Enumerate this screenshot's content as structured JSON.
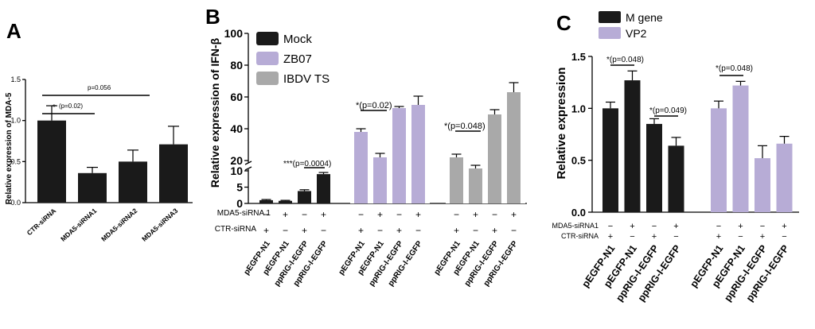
{
  "panels": {
    "A": {
      "letter": "A"
    },
    "B": {
      "letter": "B"
    },
    "C": {
      "letter": "C"
    }
  },
  "chart_data": [
    {
      "panel": "A",
      "type": "bar",
      "title": "",
      "ylabel": "Relative expression of MDA-5",
      "xlabel": "",
      "ylim": [
        0,
        1.5
      ],
      "yticks": [
        "0.0",
        "0.5",
        "1.0",
        "1.5"
      ],
      "categories": [
        "CTR-siRNA",
        "MDA5-siRNA1",
        "MDA5-siRNA2",
        "MDA5-siRNA3"
      ],
      "values": [
        1.0,
        0.36,
        0.5,
        0.71
      ],
      "errors": [
        0.18,
        0.07,
        0.14,
        0.22
      ],
      "color": "#1a1a1a",
      "annotations": [
        "p=0.056",
        "*",
        "(p=0.02)"
      ]
    },
    {
      "panel": "B",
      "type": "bar",
      "title": "",
      "ylabel": "Relative expression of IFN-β",
      "broken_axis": {
        "lower_ylim": [
          0,
          10
        ],
        "upper_ylim": [
          20,
          100
        ]
      },
      "yticks": [
        "0",
        "5",
        "10",
        "20",
        "40",
        "60",
        "80",
        "100"
      ],
      "legend": [
        "Mock",
        "ZB07",
        "IBDV TS"
      ],
      "row_labels": [
        "MDA5-siRNA 1",
        "CTR-siRNA"
      ],
      "groups": [
        {
          "name": "Mock",
          "color": "#1a1a1a",
          "categories": [
            "pEGFP-N1",
            "pEGFP-N1",
            "ppRIG-I-EGFP",
            "ppRIG-I-EGFP"
          ],
          "values": [
            1.0,
            0.8,
            3.8,
            9.0
          ],
          "errors": [
            0.2,
            0.15,
            0.4,
            0.5
          ],
          "mda5": [
            "−",
            "+",
            "−",
            "+"
          ],
          "ctr": [
            "+",
            "−",
            "+",
            "−"
          ]
        },
        {
          "name": "ZB07",
          "color": "#b7acd6",
          "categories": [
            "pEGFP-N1",
            "pEGFP-N1",
            "ppRIG-I-EGFP",
            "ppRIG-I-EGFP"
          ],
          "values": [
            38.0,
            22.0,
            53.0,
            55.0
          ],
          "errors": [
            2.0,
            2.5,
            1.0,
            5.5
          ],
          "mda5": [
            "−",
            "+",
            "−",
            "+"
          ],
          "ctr": [
            "+",
            "−",
            "+",
            "−"
          ]
        },
        {
          "name": "IBDV TS",
          "color": "#a9a9a9",
          "categories": [
            "pEGFP-N1",
            "pEGFP-N1",
            "ppRIG-I-EGFP",
            "ppRIG-I-EGFP"
          ],
          "values": [
            22.0,
            15.0,
            49.0,
            63.0
          ],
          "errors": [
            2.0,
            2.0,
            3.0,
            6.0
          ],
          "mda5": [
            "−",
            "+",
            "−",
            "+"
          ],
          "ctr": [
            "+",
            "−",
            "+",
            "−"
          ]
        }
      ],
      "annotations": [
        "***(p=0.0004)",
        "*(p=0.02)",
        "*(p=0.048)"
      ]
    },
    {
      "panel": "C",
      "type": "bar",
      "title": "",
      "ylabel": "Relative expression",
      "ylim": [
        0,
        1.5
      ],
      "yticks": [
        "0.0",
        "0.5",
        "1.0",
        "1.5"
      ],
      "legend": [
        "M gene",
        "VP2"
      ],
      "row_labels": [
        "MDA5-siRNA1",
        "CTR-siRNA"
      ],
      "groups": [
        {
          "name": "M gene",
          "color": "#1a1a1a",
          "categories": [
            "pEGFP-N1",
            "pEGFP-N1",
            "ppRIG-I-EGFP",
            "ppRIG-I-EGFP"
          ],
          "values": [
            1.0,
            1.27,
            0.85,
            0.64
          ],
          "errors": [
            0.06,
            0.09,
            0.05,
            0.08
          ],
          "mda5": [
            "−",
            "+",
            "−",
            "+"
          ],
          "ctr": [
            "+",
            "−",
            "+",
            "−"
          ]
        },
        {
          "name": "VP2",
          "color": "#b7acd6",
          "categories": [
            "pEGFP-N1",
            "pEGFP-N1",
            "ppRIG-I-EGFP",
            "ppRIG-I-EGFP"
          ],
          "values": [
            1.0,
            1.22,
            0.52,
            0.66
          ],
          "errors": [
            0.07,
            0.04,
            0.12,
            0.07
          ],
          "mda5": [
            "−",
            "+",
            "−",
            "+"
          ],
          "ctr": [
            "+",
            "−",
            "+",
            "−"
          ]
        }
      ],
      "annotations": [
        "*(p=0.048)",
        "*(p=0.049)",
        "*(p=0.048)"
      ]
    }
  ]
}
